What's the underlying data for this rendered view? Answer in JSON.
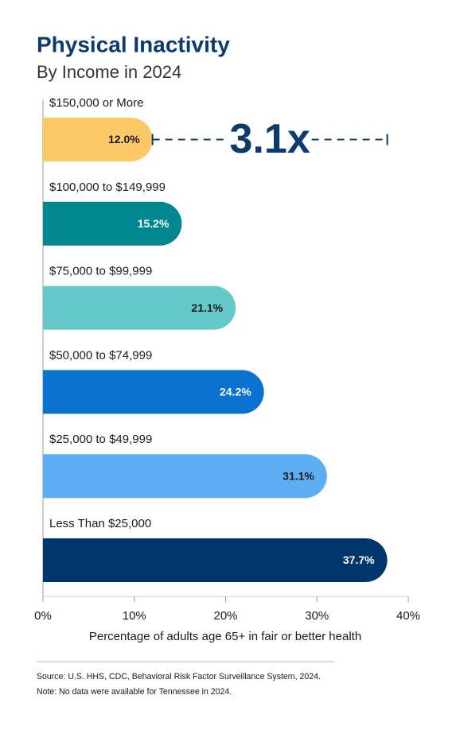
{
  "chart_data": {
    "type": "hbar",
    "title": "Physical Inactivity",
    "subtitle": "By Income in 2024",
    "categories": [
      "$150,000 or More",
      "$100,000 to $149,999",
      "$75,000 to $99,999",
      "$50,000 to $74,999",
      "$25,000 to $49,999",
      "Less Than $25,000"
    ],
    "values": [
      12.0,
      15.2,
      21.1,
      24.2,
      31.1,
      37.7
    ],
    "value_labels": [
      "12.0%",
      "15.2%",
      "21.1%",
      "24.2%",
      "31.1%",
      "37.7%"
    ],
    "colors": [
      "#fdc866",
      "#00878f",
      "#66c9c9",
      "#0a72cf",
      "#5eaef5",
      "#00366b"
    ],
    "xlim": [
      0,
      40
    ],
    "xticks": [
      {
        "value": 0,
        "label": "0%"
      },
      {
        "value": 10,
        "label": "10%"
      },
      {
        "value": 20,
        "label": "20%"
      },
      {
        "value": 30,
        "label": "30%"
      },
      {
        "value": 40,
        "label": "40%"
      }
    ],
    "xlabel": "Percentage of adults age 65+ in fair or better health",
    "annotation": "3.1x",
    "source": "Source: U.S. HHS, CDC, Behavioral Risk Factor Surveillance System, 2024.",
    "note": "Note: No data were available for Tennessee in 2024."
  }
}
